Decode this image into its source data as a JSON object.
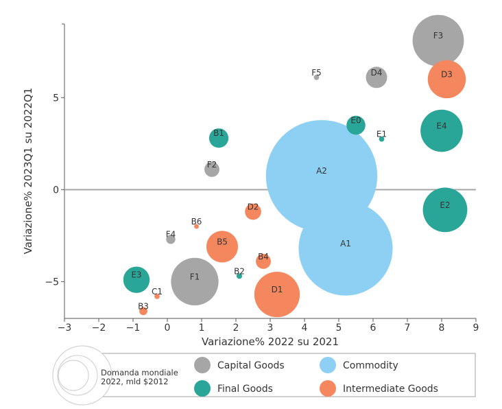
{
  "chart_data": {
    "type": "scatter",
    "subtype": "bubble",
    "title": "",
    "xlabel": "Variazione% 2022 su 2021",
    "ylabel": "Variazione% 2023Q1 su 2022Q1",
    "xlim": [
      -3,
      9
    ],
    "ylim": [
      -7,
      9
    ],
    "xticks": [
      -3,
      -2,
      -1,
      0,
      1,
      2,
      3,
      4,
      5,
      6,
      7,
      8,
      9
    ],
    "yticks": [
      -5,
      0,
      5
    ],
    "x_tick_labels": [
      "−3",
      "−2",
      "−1",
      "0",
      "1",
      "2",
      "3",
      "4",
      "5",
      "6",
      "7",
      "8",
      "9"
    ],
    "y_tick_labels": [
      "−5",
      "0",
      "5"
    ],
    "zero_line": true,
    "grid": false,
    "colors": {
      "Capital Goods": "#a6a6a6",
      "Commodity": "#8dd0f4",
      "Final Goods": "#2aa698",
      "Intermediate Goods": "#f5875f"
    },
    "series": [
      {
        "name": "Capital Goods",
        "points": [
          {
            "label": "F1",
            "x": 0.8,
            "y": -5.0,
            "size": 0.12
          },
          {
            "label": "F2",
            "x": 1.3,
            "y": 1.1,
            "size": 0.012
          },
          {
            "label": "F3",
            "x": 7.9,
            "y": 8.1,
            "size": 0.14
          },
          {
            "label": "F4",
            "x": 0.1,
            "y": -2.7,
            "size": 0.0045
          },
          {
            "label": "F5",
            "x": 4.35,
            "y": 6.1,
            "size": 0.0015
          },
          {
            "label": "D4",
            "x": 6.1,
            "y": 6.1,
            "size": 0.024
          }
        ]
      },
      {
        "name": "Commodity",
        "points": [
          {
            "label": "A1",
            "x": 5.2,
            "y": -3.2,
            "size": 0.47
          },
          {
            "label": "A2",
            "x": 4.5,
            "y": 0.75,
            "size": 0.66
          }
        ]
      },
      {
        "name": "Final Goods",
        "points": [
          {
            "label": "B1",
            "x": 1.5,
            "y": 2.8,
            "size": 0.02
          },
          {
            "label": "B2",
            "x": 2.1,
            "y": -4.7,
            "size": 0.0016
          },
          {
            "label": "E0",
            "x": 5.5,
            "y": 3.5,
            "size": 0.019
          },
          {
            "label": "E1",
            "x": 6.25,
            "y": 2.75,
            "size": 0.0015
          },
          {
            "label": "E2",
            "x": 8.1,
            "y": -1.1,
            "size": 0.105
          },
          {
            "label": "E3",
            "x": -0.9,
            "y": -4.9,
            "size": 0.037
          },
          {
            "label": "E4",
            "x": 8.0,
            "y": 3.2,
            "size": 0.095
          }
        ]
      },
      {
        "name": "Intermediate Goods",
        "points": [
          {
            "label": "B3",
            "x": -0.7,
            "y": -6.6,
            "size": 0.0035
          },
          {
            "label": "B4",
            "x": 2.8,
            "y": -3.9,
            "size": 0.012
          },
          {
            "label": "B5",
            "x": 1.6,
            "y": -3.1,
            "size": 0.053
          },
          {
            "label": "B6",
            "x": 0.85,
            "y": -2.0,
            "size": 0.0012
          },
          {
            "label": "C1",
            "x": -0.3,
            "y": -5.8,
            "size": 0.0015
          },
          {
            "label": "D1",
            "x": 3.2,
            "y": -5.7,
            "size": 0.11
          },
          {
            "label": "D2",
            "x": 2.5,
            "y": -1.2,
            "size": 0.014
          },
          {
            "label": "D3",
            "x": 8.15,
            "y": 6.0,
            "size": 0.077
          }
        ]
      }
    ],
    "legend": {
      "placement": "bottom",
      "size_title": "Domanda mondiale 2022, mld $2012",
      "size_line1": "Domanda mondiale",
      "size_line2": "2022, mld $2012",
      "entries": [
        "Capital Goods",
        "Commodity",
        "Final Goods",
        "Intermediate Goods"
      ]
    }
  }
}
